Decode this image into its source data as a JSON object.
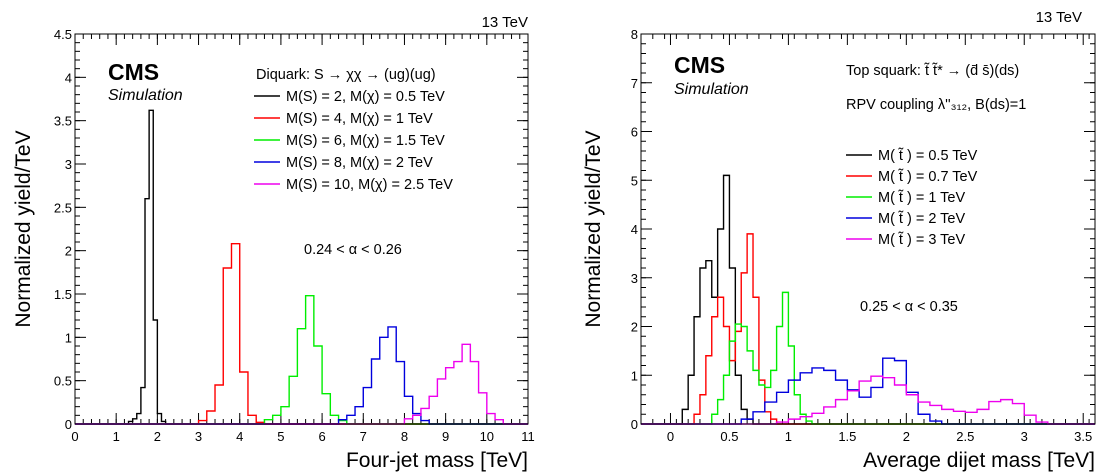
{
  "charts": [
    {
      "energy": "13 TeV",
      "cms": "CMS",
      "simulation": "Simulation",
      "legend_title": "Diquark: S → χχ → (ug)(ug)",
      "cut": "0.24 < α < 0.26",
      "colors": [
        "#000000",
        "#ff0000",
        "#00ee00",
        "#0000dd",
        "#ee00ee"
      ]
    },
    {
      "energy": "13 TeV",
      "cms": "CMS",
      "simulation": "Simulation",
      "legend_title": "Top squark: t̃ t̃* → (d̄ s̄)(ds)",
      "legend_title2": "RPV coupling λ''₃₁₂, B(ds)=1",
      "cut": "0.25 < α < 0.35",
      "colors": [
        "#000000",
        "#ff0000",
        "#00ee00",
        "#0000dd",
        "#ee00ee"
      ]
    }
  ],
  "chart_data": [
    {
      "type": "histogram",
      "xlabel": "Four-jet mass [TeV]",
      "ylabel": "Normalized yield/TeV",
      "xlim": [
        0,
        11
      ],
      "ylim": [
        0,
        4.5
      ],
      "xticks": [
        "0",
        "1",
        "2",
        "3",
        "4",
        "5",
        "6",
        "7",
        "8",
        "9",
        "10",
        "11"
      ],
      "yticks": [
        "0",
        "0.5",
        "1",
        "1.5",
        "2",
        "2.5",
        "3",
        "3.5",
        "4",
        "4.5"
      ],
      "legend": "top-right",
      "series": [
        {
          "name": "M(S) = 2, M(χ) = 0.5 TeV",
          "bins": [
            [
              1.3,
              1.4,
              0.03
            ],
            [
              1.4,
              1.5,
              0.06
            ],
            [
              1.5,
              1.6,
              0.12
            ],
            [
              1.6,
              1.7,
              0.42
            ],
            [
              1.7,
              1.8,
              2.6
            ],
            [
              1.8,
              1.9,
              3.62
            ],
            [
              1.9,
              2.0,
              1.2
            ],
            [
              2.0,
              2.1,
              0.12
            ],
            [
              2.1,
              2.2,
              0.03
            ]
          ]
        },
        {
          "name": "M(S) = 4, M(χ) = 1 TeV",
          "bins": [
            [
              3.0,
              3.2,
              0.04
            ],
            [
              3.2,
              3.4,
              0.15
            ],
            [
              3.4,
              3.6,
              0.45
            ],
            [
              3.6,
              3.8,
              1.8
            ],
            [
              3.8,
              4.0,
              2.08
            ],
            [
              4.0,
              4.2,
              0.6
            ],
            [
              4.2,
              4.4,
              0.1
            ],
            [
              4.4,
              4.6,
              0.02
            ]
          ]
        },
        {
          "name": "M(S) = 6, M(χ) = 1.5 TeV",
          "bins": [
            [
              4.6,
              4.8,
              0.05
            ],
            [
              4.8,
              5.0,
              0.1
            ],
            [
              5.0,
              5.2,
              0.2
            ],
            [
              5.2,
              5.4,
              0.55
            ],
            [
              5.4,
              5.6,
              1.1
            ],
            [
              5.6,
              5.8,
              1.48
            ],
            [
              5.8,
              6.0,
              0.9
            ],
            [
              6.0,
              6.2,
              0.35
            ],
            [
              6.2,
              6.4,
              0.1
            ],
            [
              6.4,
              6.6,
              0.04
            ]
          ]
        },
        {
          "name": "M(S) = 8, M(χ) = 2 TeV",
          "bins": [
            [
              6.4,
              6.6,
              0.05
            ],
            [
              6.6,
              6.8,
              0.1
            ],
            [
              6.8,
              7.0,
              0.2
            ],
            [
              7.0,
              7.2,
              0.42
            ],
            [
              7.2,
              7.4,
              0.75
            ],
            [
              7.4,
              7.6,
              1.0
            ],
            [
              7.6,
              7.8,
              1.12
            ],
            [
              7.8,
              8.0,
              0.72
            ],
            [
              8.0,
              8.2,
              0.32
            ],
            [
              8.2,
              8.4,
              0.12
            ],
            [
              8.4,
              8.6,
              0.04
            ]
          ]
        },
        {
          "name": "M(S) = 10, M(χ) = 2.5 TeV",
          "bins": [
            [
              8.0,
              8.2,
              0.06
            ],
            [
              8.2,
              8.4,
              0.1
            ],
            [
              8.4,
              8.6,
              0.18
            ],
            [
              8.6,
              8.8,
              0.32
            ],
            [
              8.8,
              9.0,
              0.52
            ],
            [
              9.0,
              9.2,
              0.65
            ],
            [
              9.2,
              9.4,
              0.72
            ],
            [
              9.4,
              9.6,
              0.92
            ],
            [
              9.6,
              9.8,
              0.72
            ],
            [
              9.8,
              10.0,
              0.36
            ],
            [
              10.0,
              10.2,
              0.12
            ],
            [
              10.2,
              10.4,
              0.05
            ]
          ]
        }
      ]
    },
    {
      "type": "histogram",
      "xlabel": "Average dijet mass [TeV]",
      "ylabel": "Normalized yield/TeV",
      "xlim": [
        -0.25,
        3.6
      ],
      "ylim": [
        0,
        8
      ],
      "xticks": [
        "0",
        "0.5",
        "1",
        "1.5",
        "2",
        "2.5",
        "3",
        "3.5"
      ],
      "yticks": [
        "0",
        "1",
        "2",
        "3",
        "4",
        "5",
        "6",
        "7",
        "8"
      ],
      "legend": "top-right",
      "series": [
        {
          "name": "M( t̃ ) = 0.5 TeV",
          "bins": [
            [
              0.1,
              0.15,
              0.3
            ],
            [
              0.15,
              0.2,
              1.0
            ],
            [
              0.2,
              0.25,
              2.2
            ],
            [
              0.25,
              0.3,
              3.2
            ],
            [
              0.3,
              0.35,
              3.35
            ],
            [
              0.35,
              0.4,
              2.6
            ],
            [
              0.4,
              0.45,
              4.0
            ],
            [
              0.45,
              0.5,
              5.1
            ],
            [
              0.5,
              0.55,
              3.2
            ],
            [
              0.55,
              0.6,
              1.0
            ],
            [
              0.6,
              0.65,
              0.3
            ],
            [
              0.65,
              0.7,
              0.1
            ]
          ]
        },
        {
          "name": "M( t̃ ) = 0.7 TeV",
          "bins": [
            [
              0.2,
              0.25,
              0.2
            ],
            [
              0.25,
              0.3,
              0.6
            ],
            [
              0.3,
              0.35,
              1.4
            ],
            [
              0.35,
              0.4,
              2.2
            ],
            [
              0.4,
              0.45,
              2.6
            ],
            [
              0.45,
              0.5,
              2.0
            ],
            [
              0.5,
              0.55,
              1.3
            ],
            [
              0.55,
              0.6,
              1.9
            ],
            [
              0.6,
              0.65,
              3.1
            ],
            [
              0.65,
              0.7,
              3.9
            ],
            [
              0.7,
              0.75,
              2.6
            ],
            [
              0.75,
              0.8,
              0.9
            ],
            [
              0.8,
              0.85,
              0.25
            ],
            [
              0.85,
              0.9,
              0.1
            ]
          ]
        },
        {
          "name": "M( t̃ ) = 1 TeV",
          "bins": [
            [
              0.35,
              0.4,
              0.2
            ],
            [
              0.4,
              0.45,
              0.5
            ],
            [
              0.45,
              0.5,
              1.0
            ],
            [
              0.5,
              0.55,
              1.7
            ],
            [
              0.55,
              0.6,
              2.05
            ],
            [
              0.6,
              0.65,
              2.0
            ],
            [
              0.65,
              0.7,
              1.5
            ],
            [
              0.7,
              0.75,
              1.1
            ],
            [
              0.75,
              0.8,
              0.8
            ],
            [
              0.8,
              0.85,
              0.75
            ],
            [
              0.85,
              0.9,
              1.1
            ],
            [
              0.9,
              0.95,
              2.0
            ],
            [
              0.95,
              1.0,
              2.7
            ],
            [
              1.0,
              1.05,
              1.6
            ],
            [
              1.05,
              1.1,
              0.6
            ],
            [
              1.1,
              1.15,
              0.2
            ],
            [
              1.15,
              1.2,
              0.06
            ]
          ]
        },
        {
          "name": "M( t̃ ) = 2 TeV",
          "bins": [
            [
              0.6,
              0.7,
              0.1
            ],
            [
              0.7,
              0.8,
              0.25
            ],
            [
              0.8,
              0.9,
              0.45
            ],
            [
              0.9,
              1.0,
              0.65
            ],
            [
              1.0,
              1.1,
              0.9
            ],
            [
              1.1,
              1.2,
              1.05
            ],
            [
              1.2,
              1.3,
              1.15
            ],
            [
              1.3,
              1.4,
              1.1
            ],
            [
              1.4,
              1.5,
              0.9
            ],
            [
              1.5,
              1.6,
              0.7
            ],
            [
              1.6,
              1.7,
              0.55
            ],
            [
              1.7,
              1.8,
              0.75
            ],
            [
              1.8,
              1.9,
              1.35
            ],
            [
              1.9,
              2.0,
              1.3
            ],
            [
              2.0,
              2.1,
              0.65
            ],
            [
              2.1,
              2.2,
              0.2
            ],
            [
              2.2,
              2.3,
              0.06
            ]
          ]
        },
        {
          "name": "M( t̃ ) = 3 TeV",
          "bins": [
            [
              0.9,
              1.0,
              0.04
            ],
            [
              1.0,
              1.1,
              0.1
            ],
            [
              1.1,
              1.2,
              0.15
            ],
            [
              1.2,
              1.3,
              0.22
            ],
            [
              1.3,
              1.4,
              0.35
            ],
            [
              1.4,
              1.5,
              0.5
            ],
            [
              1.5,
              1.6,
              0.68
            ],
            [
              1.6,
              1.7,
              0.88
            ],
            [
              1.7,
              1.8,
              0.98
            ],
            [
              1.8,
              1.9,
              0.95
            ],
            [
              1.9,
              2.0,
              0.8
            ],
            [
              2.0,
              2.1,
              0.6
            ],
            [
              2.1,
              2.2,
              0.45
            ],
            [
              2.2,
              2.3,
              0.38
            ],
            [
              2.3,
              2.4,
              0.3
            ],
            [
              2.4,
              2.5,
              0.26
            ],
            [
              2.5,
              2.6,
              0.24
            ],
            [
              2.6,
              2.7,
              0.3
            ],
            [
              2.7,
              2.8,
              0.46
            ],
            [
              2.8,
              2.9,
              0.5
            ],
            [
              2.9,
              3.0,
              0.42
            ],
            [
              3.0,
              3.1,
              0.18
            ],
            [
              3.1,
              3.2,
              0.04
            ]
          ]
        }
      ]
    }
  ]
}
